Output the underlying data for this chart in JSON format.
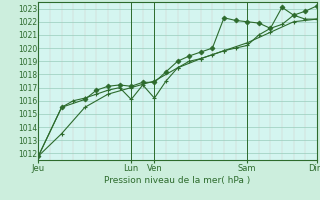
{
  "title": "",
  "xlabel": "Pression niveau de la mer( hPa )",
  "ylabel": "",
  "bg_color": "#cceedd",
  "plot_bg_color": "#d4f5f0",
  "grid_color": "#99ccbb",
  "minor_grid_color": "#cc9999",
  "line_color": "#2d6b2d",
  "ylim": [
    1011.5,
    1023.5
  ],
  "xlim": [
    0,
    96
  ],
  "yticks": [
    1012,
    1013,
    1014,
    1015,
    1016,
    1017,
    1018,
    1019,
    1020,
    1021,
    1022,
    1023
  ],
  "xtick_positions": [
    0,
    32,
    40,
    72,
    96
  ],
  "xtick_labels": [
    "Jeu",
    "Lun",
    "Ven",
    "Sam",
    "Dim"
  ],
  "vline_positions": [
    0,
    32,
    40,
    72,
    96
  ],
  "series1": {
    "x": [
      0,
      8,
      16,
      24,
      32,
      40,
      48,
      56,
      64,
      72,
      80,
      88,
      96
    ],
    "y": [
      1011.8,
      1013.5,
      1015.5,
      1016.5,
      1017.0,
      1017.5,
      1018.5,
      1019.2,
      1019.8,
      1020.4,
      1021.2,
      1022.0,
      1022.2
    ]
  },
  "series2": {
    "x": [
      0,
      8,
      12,
      16,
      20,
      24,
      28,
      32,
      36,
      40,
      44,
      48,
      52,
      56,
      60,
      64,
      68,
      72,
      76,
      80,
      84,
      88,
      92,
      96
    ],
    "y": [
      1011.8,
      1015.5,
      1016.0,
      1016.2,
      1016.5,
      1016.8,
      1017.0,
      1016.1,
      1017.2,
      1016.2,
      1017.5,
      1018.5,
      1019.0,
      1019.2,
      1019.5,
      1019.8,
      1020.0,
      1020.2,
      1021.0,
      1021.5,
      1021.8,
      1022.5,
      1022.2,
      1022.2
    ]
  },
  "series3": {
    "x": [
      0,
      8,
      16,
      20,
      24,
      28,
      32,
      36,
      40,
      44,
      48,
      52,
      56,
      60,
      64,
      68,
      72,
      76,
      80,
      84,
      88,
      92,
      96
    ],
    "y": [
      1011.8,
      1015.5,
      1016.1,
      1016.8,
      1017.1,
      1017.2,
      1017.1,
      1017.4,
      1017.4,
      1018.2,
      1019.0,
      1019.4,
      1019.7,
      1020.0,
      1022.3,
      1022.1,
      1022.0,
      1021.9,
      1021.5,
      1023.1,
      1022.5,
      1022.8,
      1023.2
    ]
  }
}
